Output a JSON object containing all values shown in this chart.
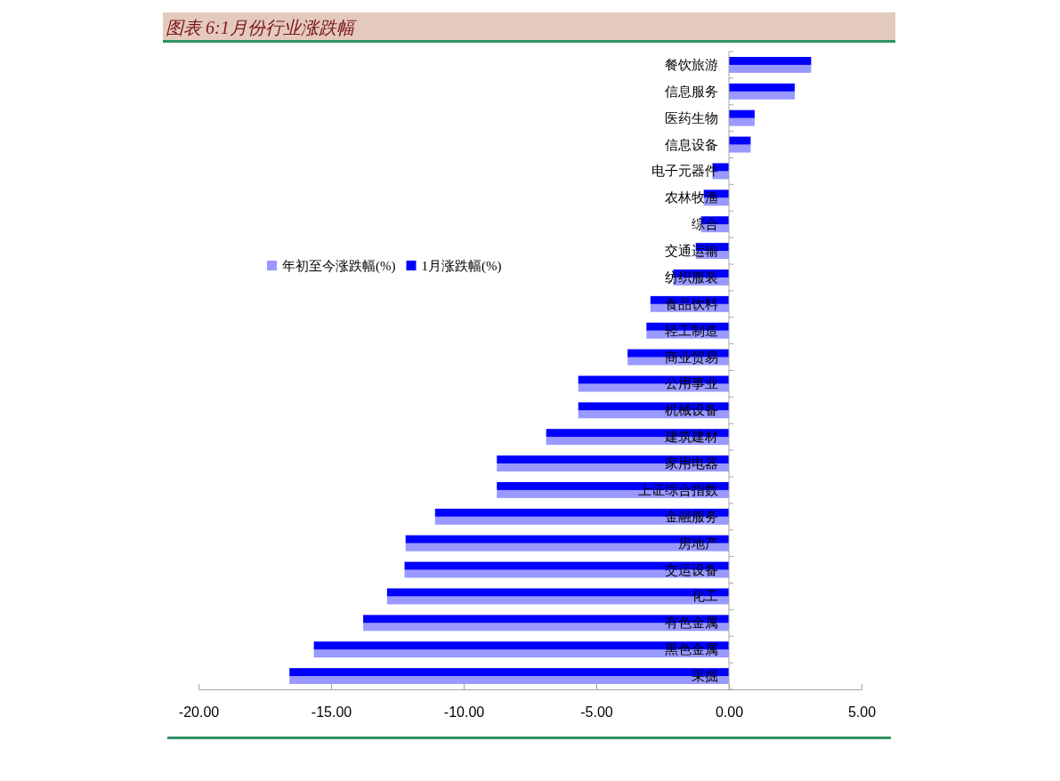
{
  "chart_data": {
    "type": "bar",
    "orientation": "horizontal",
    "title": "图表 6:1月份行业涨跌幅",
    "categories": [
      "餐饮旅游",
      "信息服务",
      "医药生物",
      "信息设备",
      "电子元器件",
      "农林牧渔",
      "综合",
      "交通运输",
      "纺织服装",
      "食品饮料",
      "轻工制造",
      "商业贸易",
      "公用事业",
      "机械设备",
      "建筑建材",
      "家用电器",
      "上证综合指数",
      "金融服务",
      "房地产",
      "交运设备",
      "化工",
      "有色金属",
      "黑色金属",
      "采掘"
    ],
    "series": [
      {
        "name": "年初至今涨跌幅(%)",
        "color": "#9999ff",
        "values": [
          3.1,
          2.48,
          0.97,
          0.82,
          -0.62,
          -0.95,
          -1.05,
          -1.25,
          -2.1,
          -2.96,
          -3.11,
          -3.82,
          -5.68,
          -5.68,
          -6.89,
          -8.75,
          -8.75,
          -11.08,
          -12.19,
          -12.23,
          -12.89,
          -13.79,
          -15.65,
          -16.57
        ]
      },
      {
        "name": "1月涨跌幅(%)",
        "color": "#0000ff",
        "values": [
          3.1,
          2.48,
          0.97,
          0.82,
          -0.62,
          -0.95,
          -1.05,
          -1.25,
          -2.1,
          -2.96,
          -3.11,
          -3.82,
          -5.68,
          -5.68,
          -6.89,
          -8.75,
          -8.75,
          -11.08,
          -12.19,
          -12.23,
          -12.89,
          -13.79,
          -15.65,
          -16.57
        ]
      }
    ],
    "xlim": [
      -20,
      5
    ],
    "xticks": [
      {
        "value": -20,
        "label": "-20.00"
      },
      {
        "value": -15,
        "label": "-15.00"
      },
      {
        "value": -10,
        "label": "-10.00"
      },
      {
        "value": -5,
        "label": "-5.00"
      },
      {
        "value": 0,
        "label": "0.00"
      },
      {
        "value": 5,
        "label": "5.00"
      }
    ],
    "legend": "top left"
  }
}
